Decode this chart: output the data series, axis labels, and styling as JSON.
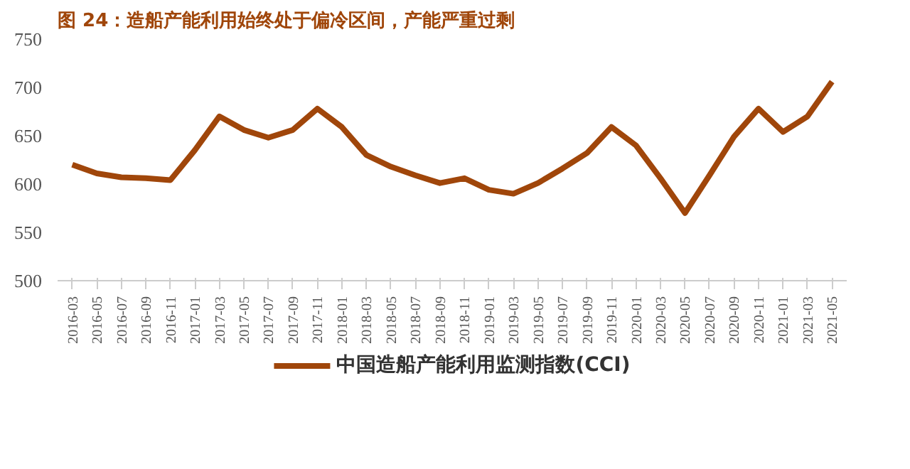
{
  "chart_data": {
    "type": "line",
    "title": "图 24：造船产能利用始终处于偏冷区间，产能严重过剩",
    "categories": [
      "2016-03",
      "2016-05",
      "2016-07",
      "2016-09",
      "2016-11",
      "2017-01",
      "2017-03",
      "2017-05",
      "2017-07",
      "2017-09",
      "2017-11",
      "2018-01",
      "2018-03",
      "2018-05",
      "2018-07",
      "2018-09",
      "2018-11",
      "2019-01",
      "2019-03",
      "2019-05",
      "2019-07",
      "2019-09",
      "2019-11",
      "2020-01",
      "2020-03",
      "2020-05",
      "2020-07",
      "2020-09",
      "2020-11",
      "2021-01",
      "2021-03",
      "2021-05"
    ],
    "series": [
      {
        "name": "中国造船产能利用监测指数(CCI)",
        "color": "#a0460a",
        "values": [
          620,
          611,
          607,
          606,
          604,
          635,
          670,
          656,
          648,
          656,
          678,
          659,
          630,
          618,
          609,
          601,
          606,
          594,
          590,
          601,
          616,
          632,
          659,
          640,
          606,
          570,
          609,
          649,
          678,
          654,
          670,
          706
        ]
      }
    ],
    "ylim": [
      500,
      750
    ],
    "yticks": [
      500,
      550,
      600,
      650,
      700,
      750
    ],
    "grid": false,
    "legend": "bottom",
    "marker": "none",
    "line_style": "solid"
  }
}
